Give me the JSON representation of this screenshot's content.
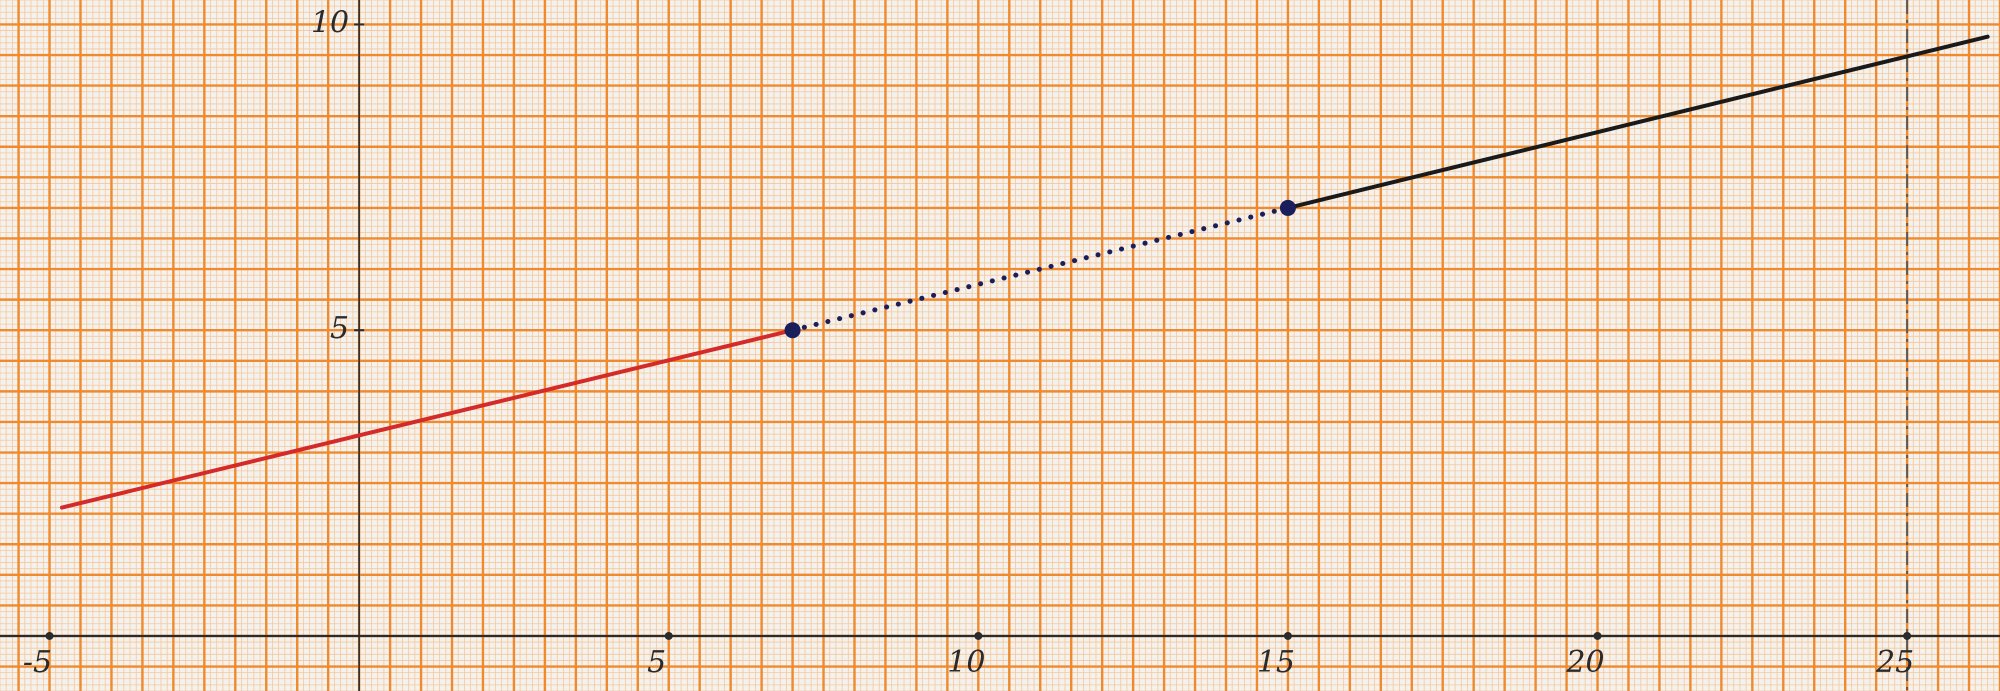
{
  "chart_data": {
    "type": "line",
    "title": "",
    "xlabel": "",
    "ylabel": "",
    "xlim": [
      -5.8,
      26.5
    ],
    "ylim": [
      -0.9,
      10.4
    ],
    "grid": true,
    "x_ticks": [
      {
        "value": -5,
        "label": "-5"
      },
      {
        "value": 5,
        "label": "5"
      },
      {
        "value": 10,
        "label": "10"
      },
      {
        "value": 15,
        "label": "15"
      },
      {
        "value": 20,
        "label": "20"
      },
      {
        "value": 25,
        "label": "25"
      }
    ],
    "y_ticks": [
      {
        "value": 5,
        "label": "5"
      },
      {
        "value": 10,
        "label": "10"
      }
    ],
    "series": [
      {
        "style": "solid",
        "color": "#d42a2a",
        "points": [
          [
            -4.8,
            2.1
          ],
          [
            7,
            5
          ]
        ]
      },
      {
        "style": "dotted",
        "color": "#1a1f5c",
        "points": [
          [
            7,
            5
          ],
          [
            15,
            7
          ]
        ]
      },
      {
        "style": "solid",
        "color": "#1a1a1a",
        "points": [
          [
            15,
            7
          ],
          [
            26.3,
            9.8
          ]
        ]
      }
    ],
    "markers": [
      {
        "x": 7,
        "y": 5,
        "color": "#1a1f5c"
      },
      {
        "x": 15,
        "y": 7,
        "color": "#1a1f5c"
      }
    ],
    "reference_lines": [
      {
        "axis": "x",
        "value": 25,
        "style": "dashdot",
        "color": "#5a5a5a"
      }
    ],
    "colors": {
      "paper": "#f4f2ee",
      "grid_major": "#f08a2c",
      "grid_minor": "#f6c79a",
      "axis": "#2b2b2b"
    }
  }
}
